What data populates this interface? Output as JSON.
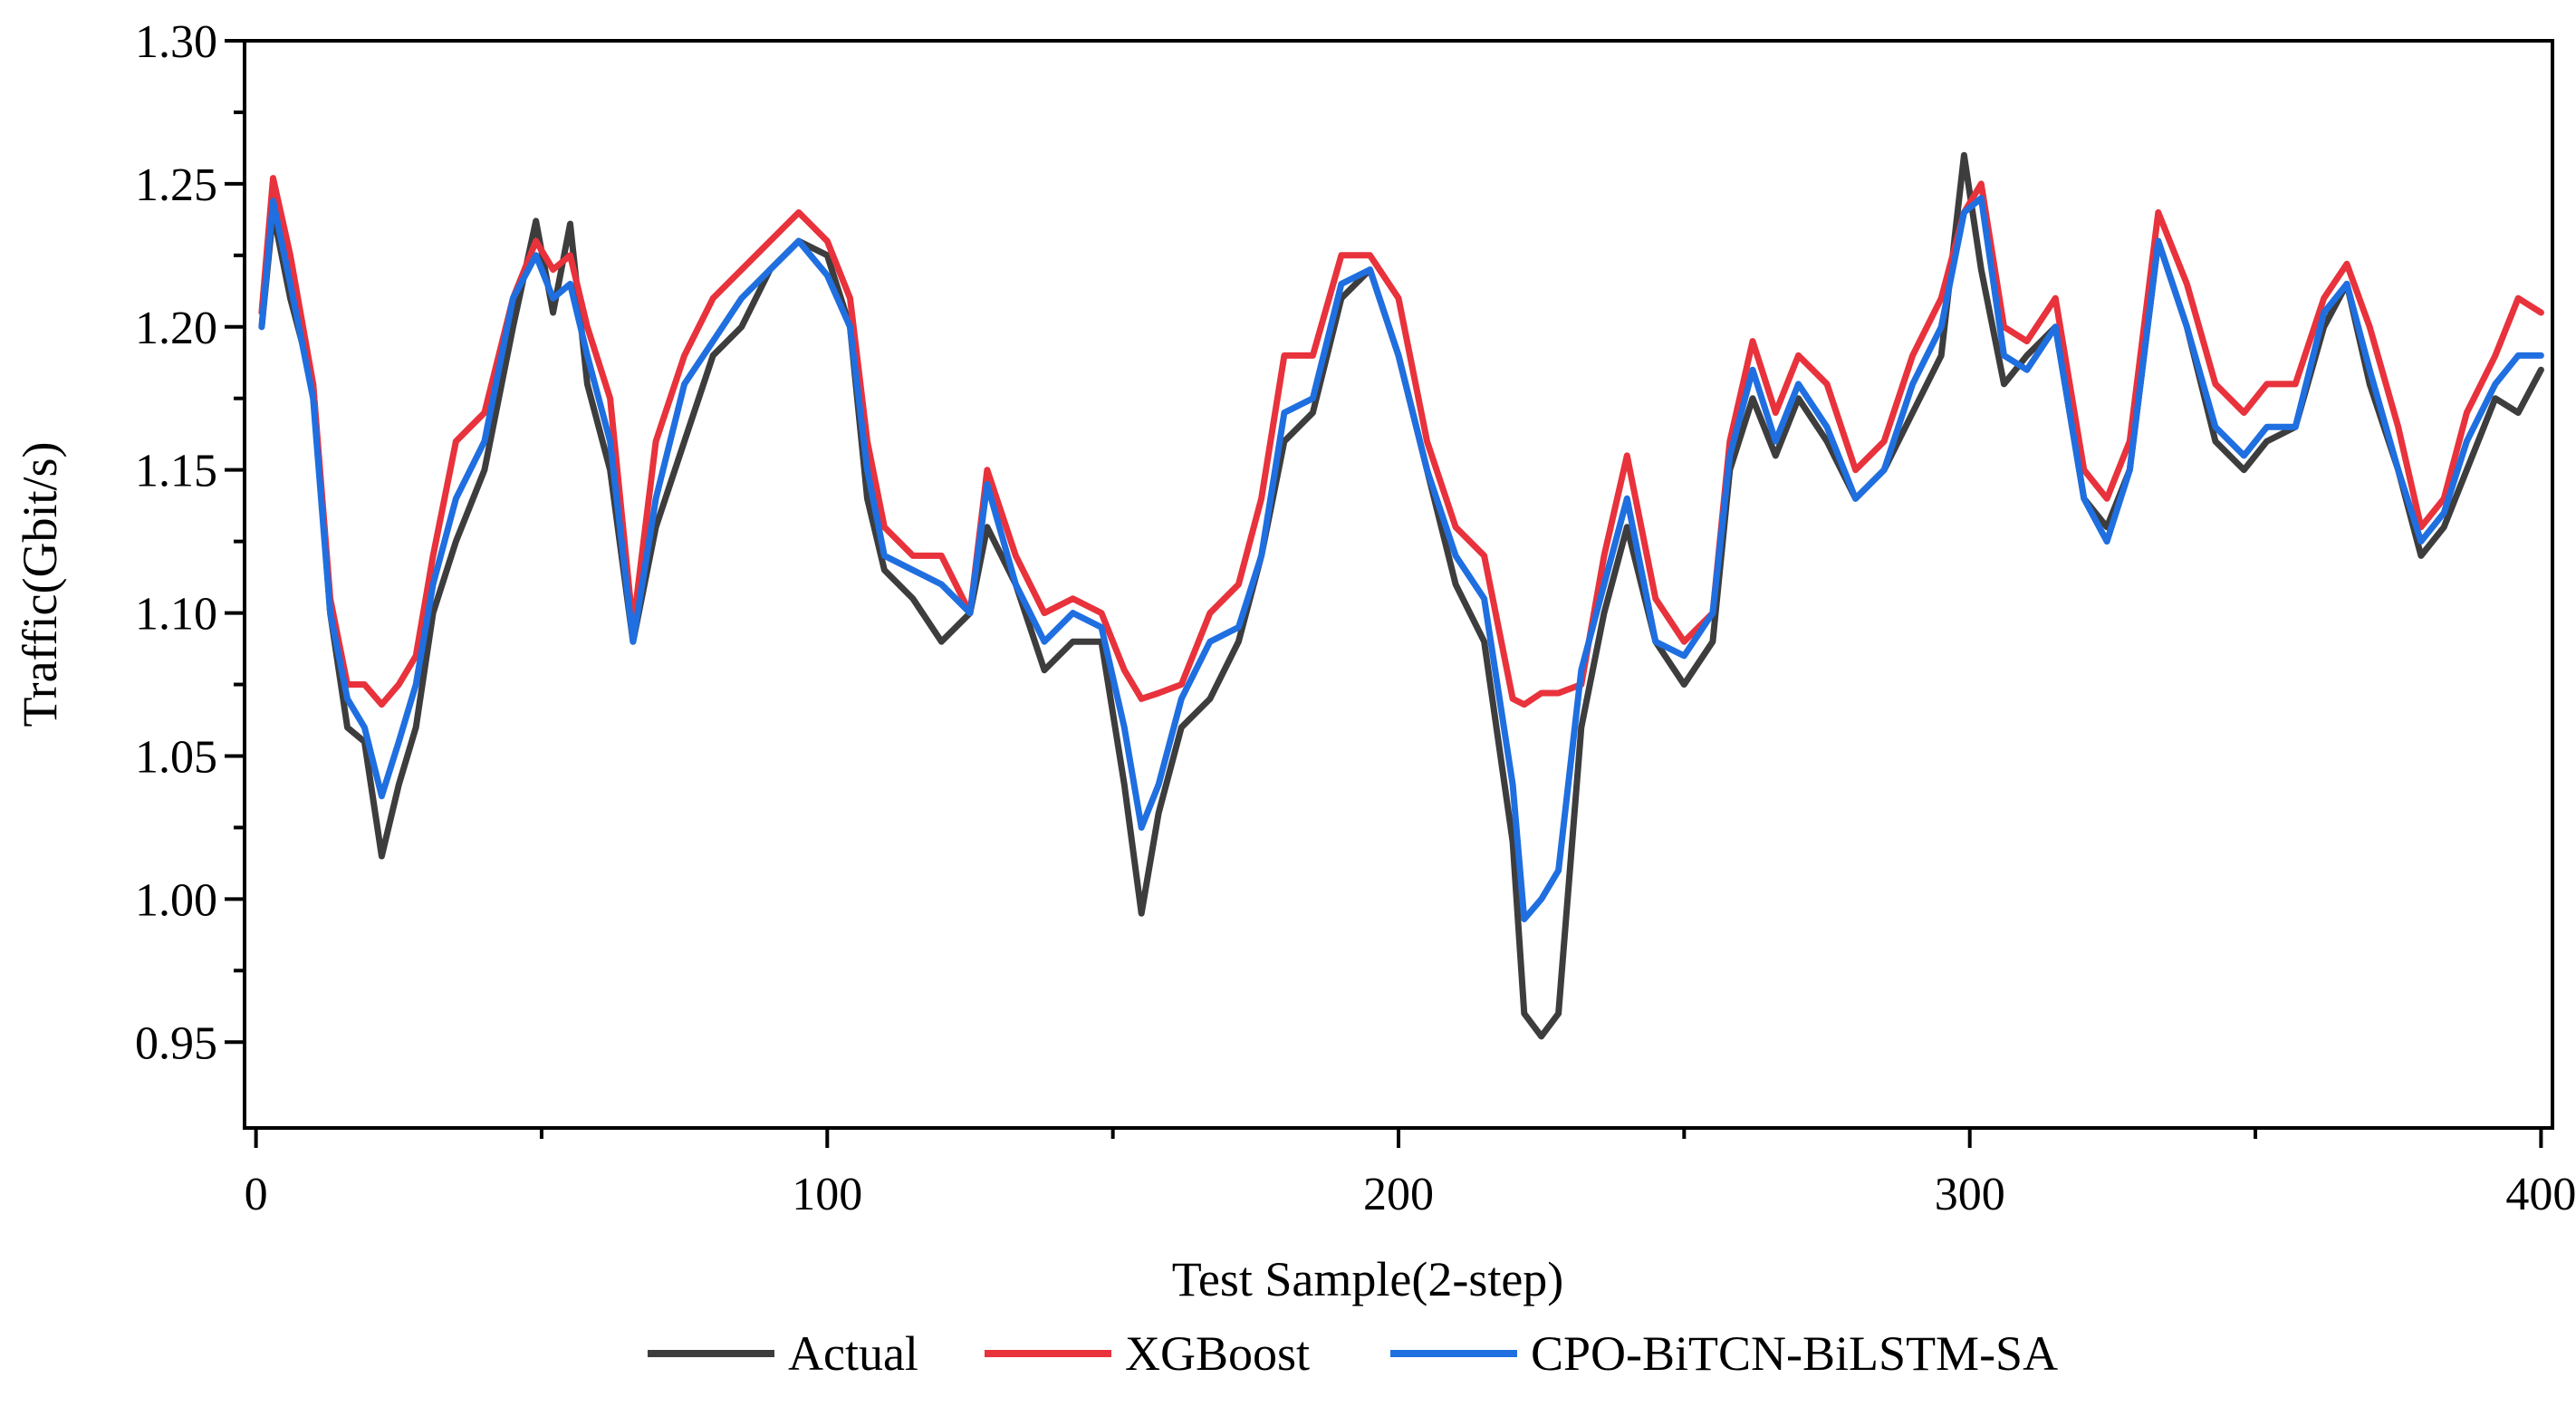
{
  "chart_data": {
    "type": "line",
    "title": "",
    "xlabel": "Test Sample(2-step)",
    "ylabel": "Traffic(Gbit/s)",
    "xlim": [
      -2,
      402
    ],
    "ylim": [
      0.92,
      1.3
    ],
    "x_ticks": [
      0,
      100,
      200,
      300,
      400
    ],
    "x_tick_labels": [
      "0",
      "100",
      "200",
      "300",
      "400"
    ],
    "y_ticks": [
      0.95,
      1.0,
      1.05,
      1.1,
      1.15,
      1.2,
      1.25,
      1.3
    ],
    "y_tick_labels": [
      "0.95",
      "1.00",
      "1.05",
      "1.10",
      "1.15",
      "1.20",
      "1.25",
      "1.30"
    ],
    "legend_position": "bottom",
    "series": [
      {
        "name": "Actual",
        "color": "#3d3d3d",
        "x": [
          1,
          3,
          6,
          10,
          13,
          16,
          19,
          22,
          25,
          28,
          31,
          35,
          40,
          45,
          49,
          52,
          55,
          58,
          62,
          66,
          70,
          75,
          80,
          85,
          90,
          95,
          100,
          104,
          107,
          110,
          115,
          120,
          125,
          128,
          133,
          138,
          143,
          148,
          152,
          155,
          158,
          162,
          167,
          172,
          176,
          180,
          185,
          190,
          195,
          200,
          205,
          210,
          215,
          220,
          222,
          225,
          228,
          232,
          236,
          240,
          245,
          250,
          255,
          258,
          262,
          266,
          270,
          275,
          280,
          285,
          290,
          295,
          299,
          302,
          306,
          310,
          315,
          320,
          324,
          328,
          333,
          338,
          343,
          348,
          352,
          357,
          362,
          366,
          370,
          375,
          379,
          383,
          387,
          392,
          396,
          400
        ],
        "y": [
          1.2,
          1.24,
          1.21,
          1.18,
          1.1,
          1.06,
          1.055,
          1.015,
          1.04,
          1.06,
          1.1,
          1.125,
          1.15,
          1.2,
          1.237,
          1.205,
          1.236,
          1.18,
          1.15,
          1.09,
          1.13,
          1.16,
          1.19,
          1.2,
          1.22,
          1.23,
          1.225,
          1.2,
          1.14,
          1.115,
          1.105,
          1.09,
          1.1,
          1.13,
          1.11,
          1.08,
          1.09,
          1.09,
          1.04,
          0.995,
          1.03,
          1.06,
          1.07,
          1.09,
          1.12,
          1.16,
          1.17,
          1.21,
          1.22,
          1.19,
          1.15,
          1.11,
          1.09,
          1.02,
          0.96,
          0.952,
          0.96,
          1.06,
          1.1,
          1.13,
          1.09,
          1.075,
          1.09,
          1.15,
          1.175,
          1.155,
          1.175,
          1.16,
          1.14,
          1.15,
          1.17,
          1.19,
          1.26,
          1.22,
          1.18,
          1.19,
          1.2,
          1.14,
          1.13,
          1.15,
          1.23,
          1.2,
          1.16,
          1.15,
          1.16,
          1.165,
          1.2,
          1.215,
          1.18,
          1.15,
          1.12,
          1.13,
          1.15,
          1.175,
          1.17,
          1.185
        ]
      },
      {
        "name": "XGBoost",
        "color": "#e8323c",
        "x": [
          1,
          3,
          6,
          10,
          13,
          16,
          19,
          22,
          25,
          28,
          31,
          35,
          40,
          45,
          49,
          52,
          55,
          58,
          62,
          66,
          70,
          75,
          80,
          85,
          90,
          95,
          100,
          104,
          107,
          110,
          115,
          120,
          125,
          128,
          133,
          138,
          143,
          148,
          152,
          155,
          158,
          162,
          167,
          172,
          176,
          180,
          185,
          190,
          195,
          200,
          205,
          210,
          215,
          220,
          222,
          225,
          228,
          232,
          236,
          240,
          245,
          250,
          255,
          258,
          262,
          266,
          270,
          275,
          280,
          285,
          290,
          295,
          299,
          302,
          306,
          310,
          315,
          320,
          324,
          328,
          333,
          338,
          343,
          348,
          352,
          357,
          362,
          366,
          370,
          375,
          379,
          383,
          387,
          392,
          396,
          400
        ],
        "y": [
          1.205,
          1.252,
          1.225,
          1.18,
          1.105,
          1.075,
          1.075,
          1.068,
          1.075,
          1.085,
          1.12,
          1.16,
          1.17,
          1.21,
          1.23,
          1.22,
          1.225,
          1.2,
          1.175,
          1.095,
          1.16,
          1.19,
          1.21,
          1.22,
          1.23,
          1.24,
          1.23,
          1.21,
          1.16,
          1.13,
          1.12,
          1.12,
          1.1,
          1.15,
          1.12,
          1.1,
          1.105,
          1.1,
          1.08,
          1.07,
          1.072,
          1.075,
          1.1,
          1.11,
          1.14,
          1.19,
          1.19,
          1.225,
          1.225,
          1.21,
          1.16,
          1.13,
          1.12,
          1.07,
          1.068,
          1.072,
          1.072,
          1.075,
          1.12,
          1.155,
          1.105,
          1.09,
          1.1,
          1.16,
          1.195,
          1.17,
          1.19,
          1.18,
          1.15,
          1.16,
          1.19,
          1.21,
          1.24,
          1.25,
          1.2,
          1.195,
          1.21,
          1.15,
          1.14,
          1.16,
          1.24,
          1.215,
          1.18,
          1.17,
          1.18,
          1.18,
          1.21,
          1.222,
          1.2,
          1.165,
          1.13,
          1.14,
          1.17,
          1.19,
          1.21,
          1.205
        ]
      },
      {
        "name": "CPO-BiTCN-BiLSTM-SA",
        "color": "#1f6fe0",
        "x": [
          1,
          3,
          6,
          10,
          13,
          16,
          19,
          22,
          25,
          28,
          31,
          35,
          40,
          45,
          49,
          52,
          55,
          58,
          62,
          66,
          70,
          75,
          80,
          85,
          90,
          95,
          100,
          104,
          107,
          110,
          115,
          120,
          125,
          128,
          133,
          138,
          143,
          148,
          152,
          155,
          158,
          162,
          167,
          172,
          176,
          180,
          185,
          190,
          195,
          200,
          205,
          210,
          215,
          220,
          222,
          225,
          228,
          232,
          236,
          240,
          245,
          250,
          255,
          258,
          262,
          266,
          270,
          275,
          280,
          285,
          290,
          295,
          299,
          302,
          306,
          310,
          315,
          320,
          324,
          328,
          333,
          338,
          343,
          348,
          352,
          357,
          362,
          366,
          370,
          375,
          379,
          383,
          387,
          392,
          396,
          400
        ],
        "y": [
          1.2,
          1.244,
          1.215,
          1.175,
          1.1,
          1.07,
          1.06,
          1.036,
          1.055,
          1.075,
          1.11,
          1.14,
          1.16,
          1.21,
          1.225,
          1.21,
          1.215,
          1.19,
          1.16,
          1.09,
          1.14,
          1.18,
          1.195,
          1.21,
          1.22,
          1.23,
          1.218,
          1.2,
          1.15,
          1.12,
          1.115,
          1.11,
          1.1,
          1.145,
          1.11,
          1.09,
          1.1,
          1.095,
          1.06,
          1.025,
          1.04,
          1.07,
          1.09,
          1.095,
          1.12,
          1.17,
          1.175,
          1.215,
          1.22,
          1.19,
          1.15,
          1.12,
          1.105,
          1.04,
          0.993,
          1.0,
          1.01,
          1.08,
          1.11,
          1.14,
          1.09,
          1.085,
          1.1,
          1.155,
          1.185,
          1.16,
          1.18,
          1.165,
          1.14,
          1.15,
          1.18,
          1.2,
          1.24,
          1.245,
          1.19,
          1.185,
          1.2,
          1.14,
          1.125,
          1.15,
          1.23,
          1.2,
          1.165,
          1.155,
          1.165,
          1.165,
          1.205,
          1.215,
          1.185,
          1.15,
          1.125,
          1.135,
          1.16,
          1.18,
          1.19,
          1.19
        ]
      }
    ]
  }
}
